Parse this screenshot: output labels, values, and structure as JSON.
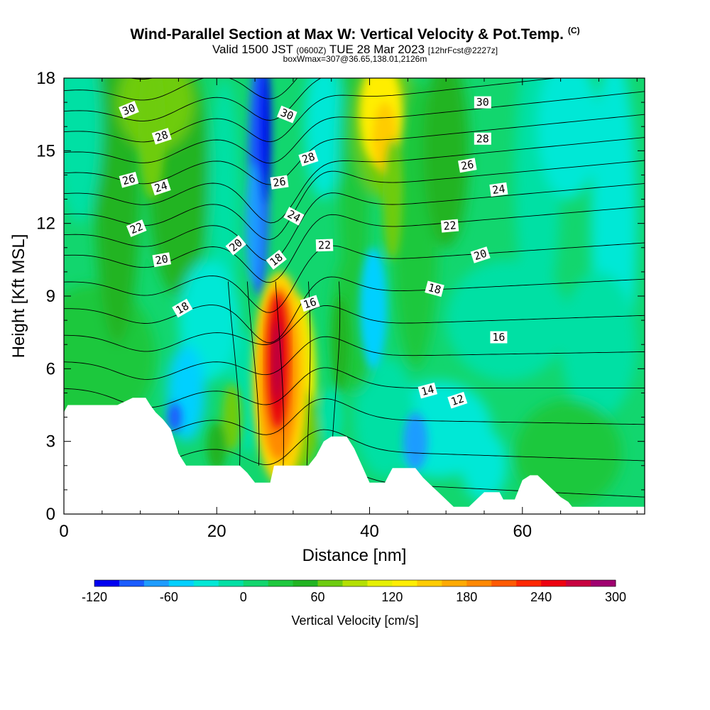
{
  "titles": {
    "main": "Wind-Parallel Section at Max W: Vertical Velocity & Pot.Temp.",
    "mark": "(C)",
    "valid_a": "Valid 1500 JST",
    "valid_b": "(0600Z)",
    "valid_c": "TUE 28 Mar 2023",
    "valid_d": "[12hrFcst@2227z]",
    "box": "boxWmax=307@36.65,138.01,2126m"
  },
  "chart_data": {
    "type": "heatmap",
    "xlabel": "Distance [nm]",
    "ylabel": "Height [Kft MSL]",
    "xlim": [
      0,
      76
    ],
    "ylim": [
      0,
      18
    ],
    "x_ticks": [
      0,
      20,
      40,
      60
    ],
    "y_ticks": [
      0,
      3,
      6,
      9,
      12,
      15,
      18
    ],
    "colorbar": {
      "label": "Vertical Velocity [cm/s]",
      "min": -120,
      "max": 300,
      "step": 20,
      "ticks": [
        -120,
        -60,
        0,
        60,
        120,
        180,
        240,
        300
      ],
      "colors": [
        "#0000f0",
        "#1a5cff",
        "#1e9cff",
        "#00d0ff",
        "#00e8d6",
        "#00e0a4",
        "#12d66e",
        "#1ec83e",
        "#22b422",
        "#6ecc10",
        "#b4e000",
        "#e6f000",
        "#ffee00",
        "#ffcc00",
        "#ffaa00",
        "#ff8800",
        "#ff5a00",
        "#ff2800",
        "#ee0010",
        "#c80040",
        "#a00070"
      ]
    },
    "terrain_kft": [
      [
        0,
        4.2
      ],
      [
        0.5,
        4.5
      ],
      [
        7,
        4.5
      ],
      [
        9,
        4.8
      ],
      [
        10.7,
        4.8
      ],
      [
        11.3,
        4.5
      ],
      [
        12,
        4.2
      ],
      [
        13,
        3.9
      ],
      [
        14,
        3.5
      ],
      [
        14.5,
        3.0
      ],
      [
        15,
        2.5
      ],
      [
        16,
        2.0
      ],
      [
        18,
        2.0
      ],
      [
        23,
        2.0
      ],
      [
        24,
        1.7
      ],
      [
        25,
        1.3
      ],
      [
        27,
        1.3
      ],
      [
        27.5,
        2.0
      ],
      [
        32,
        2.0
      ],
      [
        33,
        2.4
      ],
      [
        33.5,
        2.7
      ],
      [
        34,
        3.0
      ],
      [
        35,
        3.2
      ],
      [
        37,
        3.2
      ],
      [
        38,
        2.7
      ],
      [
        39,
        2.0
      ],
      [
        40,
        1.3
      ],
      [
        42,
        1.3
      ],
      [
        42.5,
        1.6
      ],
      [
        43,
        1.9
      ],
      [
        46,
        1.9
      ],
      [
        47,
        1.5
      ],
      [
        48,
        1.2
      ],
      [
        49,
        0.9
      ],
      [
        50,
        0.6
      ],
      [
        51,
        0.3
      ],
      [
        53,
        0.3
      ],
      [
        54,
        0.6
      ],
      [
        55,
        0.9
      ],
      [
        57,
        0.9
      ],
      [
        57.5,
        0.6
      ],
      [
        59,
        0.6
      ],
      [
        59.5,
        1.0
      ],
      [
        60,
        1.4
      ],
      [
        61,
        1.6
      ],
      [
        62,
        1.6
      ],
      [
        63,
        1.3
      ],
      [
        64,
        1.0
      ],
      [
        65,
        0.7
      ],
      [
        66,
        0.5
      ],
      [
        66.5,
        0.3
      ],
      [
        76,
        0.3
      ]
    ],
    "theta_labels_c": [
      {
        "text": "30",
        "x": 8.5,
        "y": 16.7,
        "r": -22
      },
      {
        "text": "28",
        "x": 12.8,
        "y": 15.6,
        "r": -18
      },
      {
        "text": "26",
        "x": 8.5,
        "y": 13.8,
        "r": -15
      },
      {
        "text": "24",
        "x": 12.7,
        "y": 13.5,
        "r": -18
      },
      {
        "text": "22",
        "x": 9.5,
        "y": 11.8,
        "r": -22
      },
      {
        "text": "20",
        "x": 12.8,
        "y": 10.5,
        "r": -10
      },
      {
        "text": "18",
        "x": 15.5,
        "y": 8.5,
        "r": -30
      },
      {
        "text": "20",
        "x": 22.5,
        "y": 11.1,
        "r": -40
      },
      {
        "text": "30",
        "x": 29.2,
        "y": 16.5,
        "r": 22
      },
      {
        "text": "28",
        "x": 32,
        "y": 14.7,
        "r": -18
      },
      {
        "text": "26",
        "x": 28.2,
        "y": 13.7,
        "r": -8
      },
      {
        "text": "24",
        "x": 30.1,
        "y": 12.3,
        "r": 28
      },
      {
        "text": "18",
        "x": 27.8,
        "y": 10.5,
        "r": -38
      },
      {
        "text": "22",
        "x": 34.1,
        "y": 11.1,
        "r": -2
      },
      {
        "text": "16",
        "x": 32.2,
        "y": 8.7,
        "r": -18
      },
      {
        "text": "30",
        "x": 54.8,
        "y": 17.0,
        "r": 0
      },
      {
        "text": "28",
        "x": 54.8,
        "y": 15.5,
        "r": 0
      },
      {
        "text": "26",
        "x": 52.8,
        "y": 14.4,
        "r": -10
      },
      {
        "text": "24",
        "x": 56.9,
        "y": 13.4,
        "r": -8
      },
      {
        "text": "22",
        "x": 50.5,
        "y": 11.9,
        "r": -5
      },
      {
        "text": "20",
        "x": 54.5,
        "y": 10.7,
        "r": -18
      },
      {
        "text": "18",
        "x": 48.5,
        "y": 9.3,
        "r": 15
      },
      {
        "text": "16",
        "x": 56.9,
        "y": 7.3,
        "r": 0
      },
      {
        "text": "14",
        "x": 47.6,
        "y": 5.1,
        "r": -15
      },
      {
        "text": "12",
        "x": 51.5,
        "y": 4.7,
        "r": -18
      }
    ]
  }
}
